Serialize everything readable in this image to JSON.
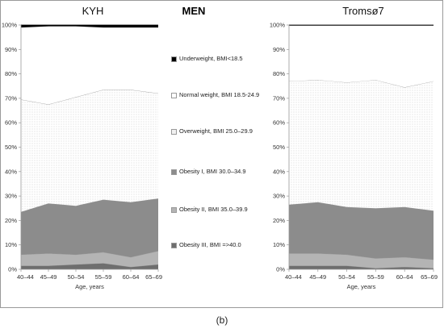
{
  "header": {
    "men_title": "MEN"
  },
  "caption": "(b)",
  "legend": [
    {
      "label": "Underweight, BMI<18.5",
      "color": "#000000"
    },
    {
      "label": "Normal weight, BMI 18.5-24.9",
      "color": "#ffffff"
    },
    {
      "label": "Overweight, BMI 25.0–29.9",
      "color": "#ffffff"
    },
    {
      "label": "Obesity I, BMI 30.0–34.9",
      "color": "#8c8c8c"
    },
    {
      "label": "Obesity II, BMI 35.0–39.9",
      "color": "#b4b4b4"
    },
    {
      "label": "Obesity III, BMI =>40.0",
      "color": "#6e6e6e"
    }
  ],
  "chart_data": [
    {
      "type": "area",
      "title": "KYH",
      "xlabel": "Age, years",
      "ylabel": "",
      "ylim": [
        0,
        100
      ],
      "y_ticks": [
        "0%",
        "10%",
        "20%",
        "30%",
        "40%",
        "50%",
        "60%",
        "70%",
        "80%",
        "90%",
        "100%"
      ],
      "categories": [
        "40–44",
        "45–49",
        "50–54",
        "55–59",
        "60–64",
        "65–69"
      ],
      "stacked_percent": true,
      "series": [
        {
          "name": "Obesity III, BMI =>40.0",
          "values": [
            1.5,
            1.5,
            2,
            2.5,
            1,
            2
          ]
        },
        {
          "name": "Obesity II, BMI 35.0–39.9",
          "values": [
            4.5,
            5,
            4,
            4.5,
            4,
            5.5
          ]
        },
        {
          "name": "Obesity I, BMI 30.0–34.9",
          "values": [
            17.5,
            20.5,
            20,
            21.5,
            22.5,
            21.5
          ]
        },
        {
          "name": "Overweight, BMI 25.0–29.9",
          "values": [
            46,
            40.5,
            44.5,
            45,
            46,
            43
          ]
        },
        {
          "name": "Normal weight, BMI 18.5-24.9",
          "values": [
            29.5,
            32,
            29,
            25.5,
            25.5,
            27
          ]
        },
        {
          "name": "Underweight, BMI<18.5",
          "values": [
            1,
            0.5,
            0.5,
            1,
            1,
            1
          ]
        }
      ]
    },
    {
      "type": "area",
      "title": "Tromsø7",
      "xlabel": "Age, years",
      "ylabel": "",
      "ylim": [
        0,
        100
      ],
      "y_ticks": [
        "0%",
        "10%",
        "20%",
        "30%",
        "40%",
        "50%",
        "60%",
        "70%",
        "80%",
        "90%",
        "100%"
      ],
      "categories": [
        "40–44",
        "45–49",
        "50–54",
        "55–59",
        "60–64",
        "65–69"
      ],
      "stacked_percent": true,
      "series": [
        {
          "name": "Obesity III, BMI =>40.0",
          "values": [
            1.5,
            1.5,
            1.5,
            0.5,
            1,
            0.5
          ]
        },
        {
          "name": "Obesity II, BMI 35.0–39.9",
          "values": [
            5,
            5,
            4.5,
            4,
            4,
            3.5
          ]
        },
        {
          "name": "Obesity I, BMI 30.0–34.9",
          "values": [
            20,
            21,
            19.5,
            20.5,
            20.5,
            20
          ]
        },
        {
          "name": "Overweight, BMI 25.0–29.9",
          "values": [
            50.5,
            50,
            51,
            52.5,
            49,
            53
          ]
        },
        {
          "name": "Normal weight, BMI 18.5-24.9",
          "values": [
            22.8,
            22.3,
            23.3,
            22.3,
            25.3,
            22.8
          ]
        },
        {
          "name": "Underweight, BMI<18.5",
          "values": [
            0.2,
            0.2,
            0.2,
            0.2,
            0.2,
            0.2
          ]
        }
      ]
    }
  ]
}
